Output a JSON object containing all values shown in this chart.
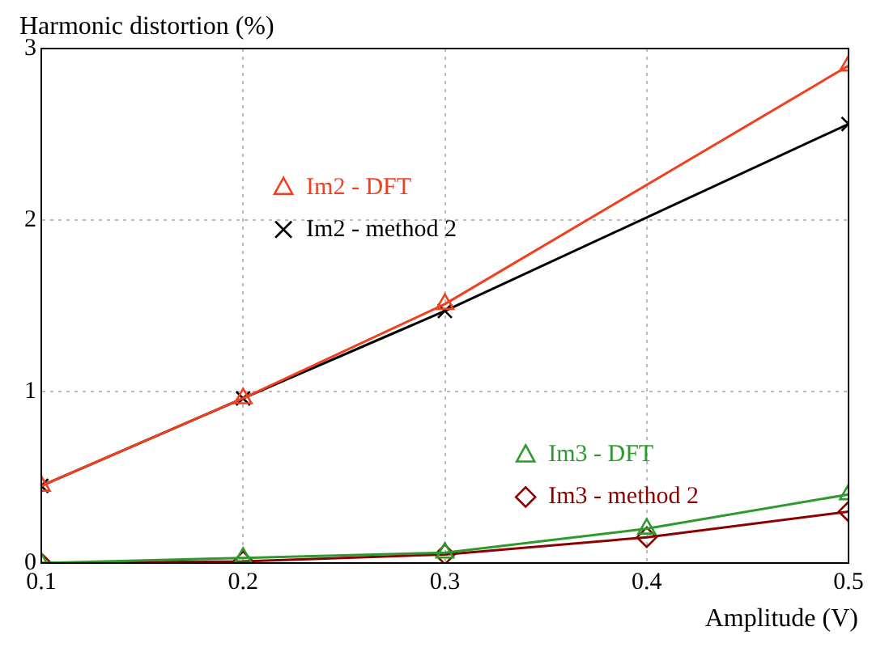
{
  "chart_data": {
    "type": "line",
    "xlabel": "Amplitude (V)",
    "ylabel": "Harmonic distortion (%)",
    "xlim": [
      0.1,
      0.5
    ],
    "xticks": [
      0.1,
      0.2,
      0.3,
      0.4,
      0.5
    ],
    "ylim": [
      0,
      3
    ],
    "yticks": [
      0,
      1,
      2,
      3
    ],
    "grid": true,
    "legend": "center",
    "x": [
      0.1,
      0.2,
      0.3,
      0.4,
      0.5
    ],
    "series": [
      {
        "name": "Im2 - DFT",
        "color": "#f04020",
        "marker": "triangle",
        "x": [
          0.1,
          0.2,
          0.3,
          0.5
        ],
        "values": [
          0.45,
          0.96,
          1.51,
          2.9
        ]
      },
      {
        "name": "Im2 - method 2",
        "color": "#000000",
        "marker": "cross",
        "x": [
          0.1,
          0.2,
          0.3,
          0.5
        ],
        "values": [
          0.45,
          0.96,
          1.47,
          2.56
        ]
      },
      {
        "name": "Im3 - DFT",
        "color": "#2e9a2e",
        "marker": "triangle",
        "values": [
          0,
          0.03,
          0.06,
          0.2,
          0.4
        ]
      },
      {
        "name": "Im3 - method 2",
        "color": "#8b0000",
        "marker": "diamond",
        "values": [
          0,
          0.01,
          0.05,
          0.15,
          0.3
        ]
      }
    ]
  }
}
